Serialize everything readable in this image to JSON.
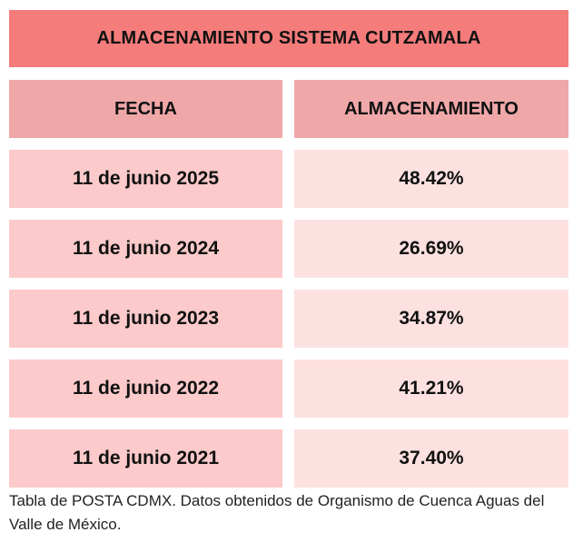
{
  "title": "ALMACENAMIENTO SISTEMA CUTZAMALA",
  "headers": {
    "date": "FECHA",
    "storage": "ALMACENAMIENTO"
  },
  "rows": [
    {
      "date": "11 de junio 2025",
      "storage": "48.42%"
    },
    {
      "date": "11 de junio 2024",
      "storage": "26.69%"
    },
    {
      "date": "11 de junio 2023",
      "storage": "34.87%"
    },
    {
      "date": "11 de junio 2022",
      "storage": "41.21%"
    },
    {
      "date": "11 de junio 2021",
      "storage": "37.40%"
    }
  ],
  "caption": "Tabla de POSTA CDMX. Datos obtenidos de Organismo de Cuenca Aguas del Valle de México.",
  "colors": {
    "title_bg": "#f47c7b",
    "header_bg": "#f0a7a8",
    "date_cell_bg": "#fccaca",
    "value_cell_bg": "#fde1e1"
  }
}
